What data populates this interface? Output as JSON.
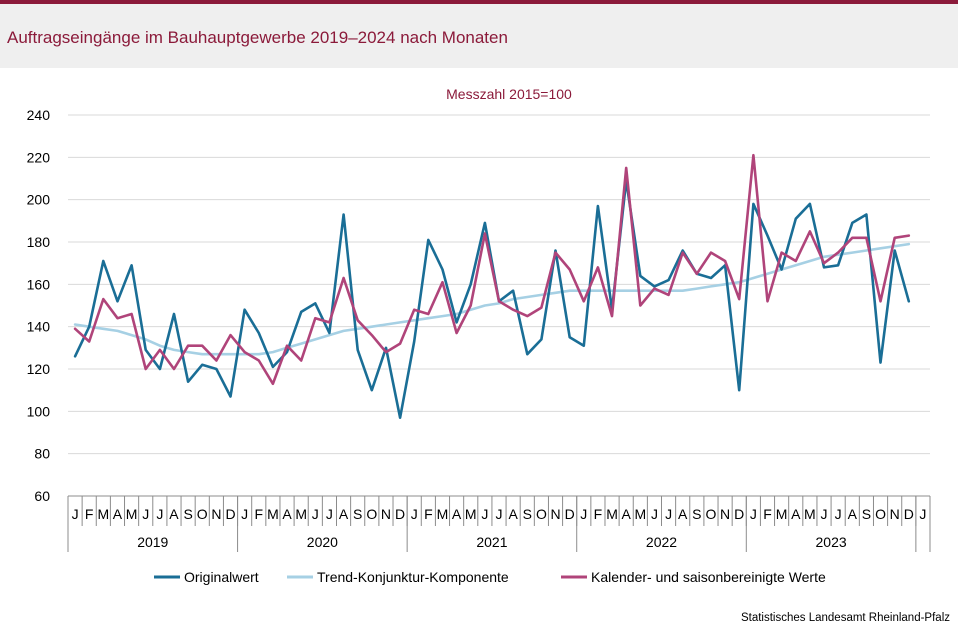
{
  "title": "Auftragseingänge im Bauhauptgewerbe 2019–2024 nach Monaten",
  "source": "Statistisches Landesamt Rheinland-Pfalz",
  "colors": {
    "brand": "#8b1a3a",
    "original": "#1a6e96",
    "trend": "#a6d0e4",
    "seasonal": "#b0447a"
  },
  "chart_data": {
    "type": "line",
    "title": "Messzahl 2015=100",
    "ylim": [
      60,
      240
    ],
    "yticks": [
      60,
      80,
      100,
      120,
      140,
      160,
      180,
      200,
      220,
      240
    ],
    "month_labels": [
      "J",
      "F",
      "M",
      "A",
      "M",
      "J",
      "J",
      "A",
      "S",
      "O",
      "N",
      "D",
      "J",
      "F",
      "M",
      "A",
      "M",
      "J",
      "J",
      "A",
      "S",
      "O",
      "N",
      "D",
      "J",
      "F",
      "M",
      "A",
      "M",
      "J",
      "J",
      "A",
      "S",
      "O",
      "N",
      "D",
      "J",
      "F",
      "M",
      "A",
      "M",
      "J",
      "J",
      "A",
      "S",
      "O",
      "N",
      "D",
      "J",
      "F",
      "M",
      "A",
      "M",
      "J",
      "J",
      "A",
      "S",
      "O",
      "N",
      "D",
      "J"
    ],
    "year_labels": [
      "2019",
      "2020",
      "2021",
      "2022",
      "2023"
    ],
    "grid": "horizontal",
    "legend_position": "bottom",
    "series": [
      {
        "name": "Originalwert",
        "values": [
          126,
          140,
          171,
          152,
          169,
          129,
          120,
          146,
          114,
          122,
          120,
          107,
          148,
          137,
          121,
          128,
          147,
          151,
          137,
          193,
          129,
          110,
          130,
          97,
          133,
          181,
          167,
          142,
          160,
          189,
          152,
          157,
          127,
          134,
          176,
          135,
          131,
          197,
          148,
          209,
          164,
          159,
          162,
          176,
          165,
          163,
          169,
          110,
          198,
          183,
          167,
          191,
          198,
          168,
          169,
          189,
          193,
          123,
          176,
          152
        ],
        "color": "#1a6e96"
      },
      {
        "name": "Trend-Konjunktur-Komponente",
        "values": [
          141,
          140,
          139,
          138,
          136,
          134,
          131,
          129,
          128,
          127,
          127,
          127,
          127,
          127,
          128,
          130,
          132,
          134,
          136,
          138,
          139,
          140,
          141,
          142,
          143,
          144,
          145,
          146,
          148,
          150,
          151,
          153,
          154,
          155,
          156,
          157,
          157,
          157,
          157,
          157,
          157,
          157,
          157,
          157,
          158,
          159,
          160,
          161,
          163,
          165,
          167,
          169,
          171,
          173,
          174,
          175,
          176,
          177,
          178,
          179
        ],
        "color": "#a6d0e4"
      },
      {
        "name": "Kalender- und saisonbereinigte Werte",
        "values": [
          139,
          133,
          153,
          144,
          146,
          120,
          129,
          120,
          131,
          131,
          124,
          136,
          128,
          124,
          113,
          131,
          124,
          144,
          142,
          163,
          143,
          136,
          128,
          132,
          148,
          146,
          161,
          137,
          150,
          184,
          152,
          148,
          145,
          149,
          175,
          167,
          152,
          168,
          145,
          215,
          150,
          158,
          155,
          175,
          165,
          175,
          171,
          153,
          221,
          152,
          175,
          171,
          185,
          170,
          175,
          182,
          182,
          152,
          182,
          183
        ],
        "color": "#b0447a"
      }
    ]
  }
}
